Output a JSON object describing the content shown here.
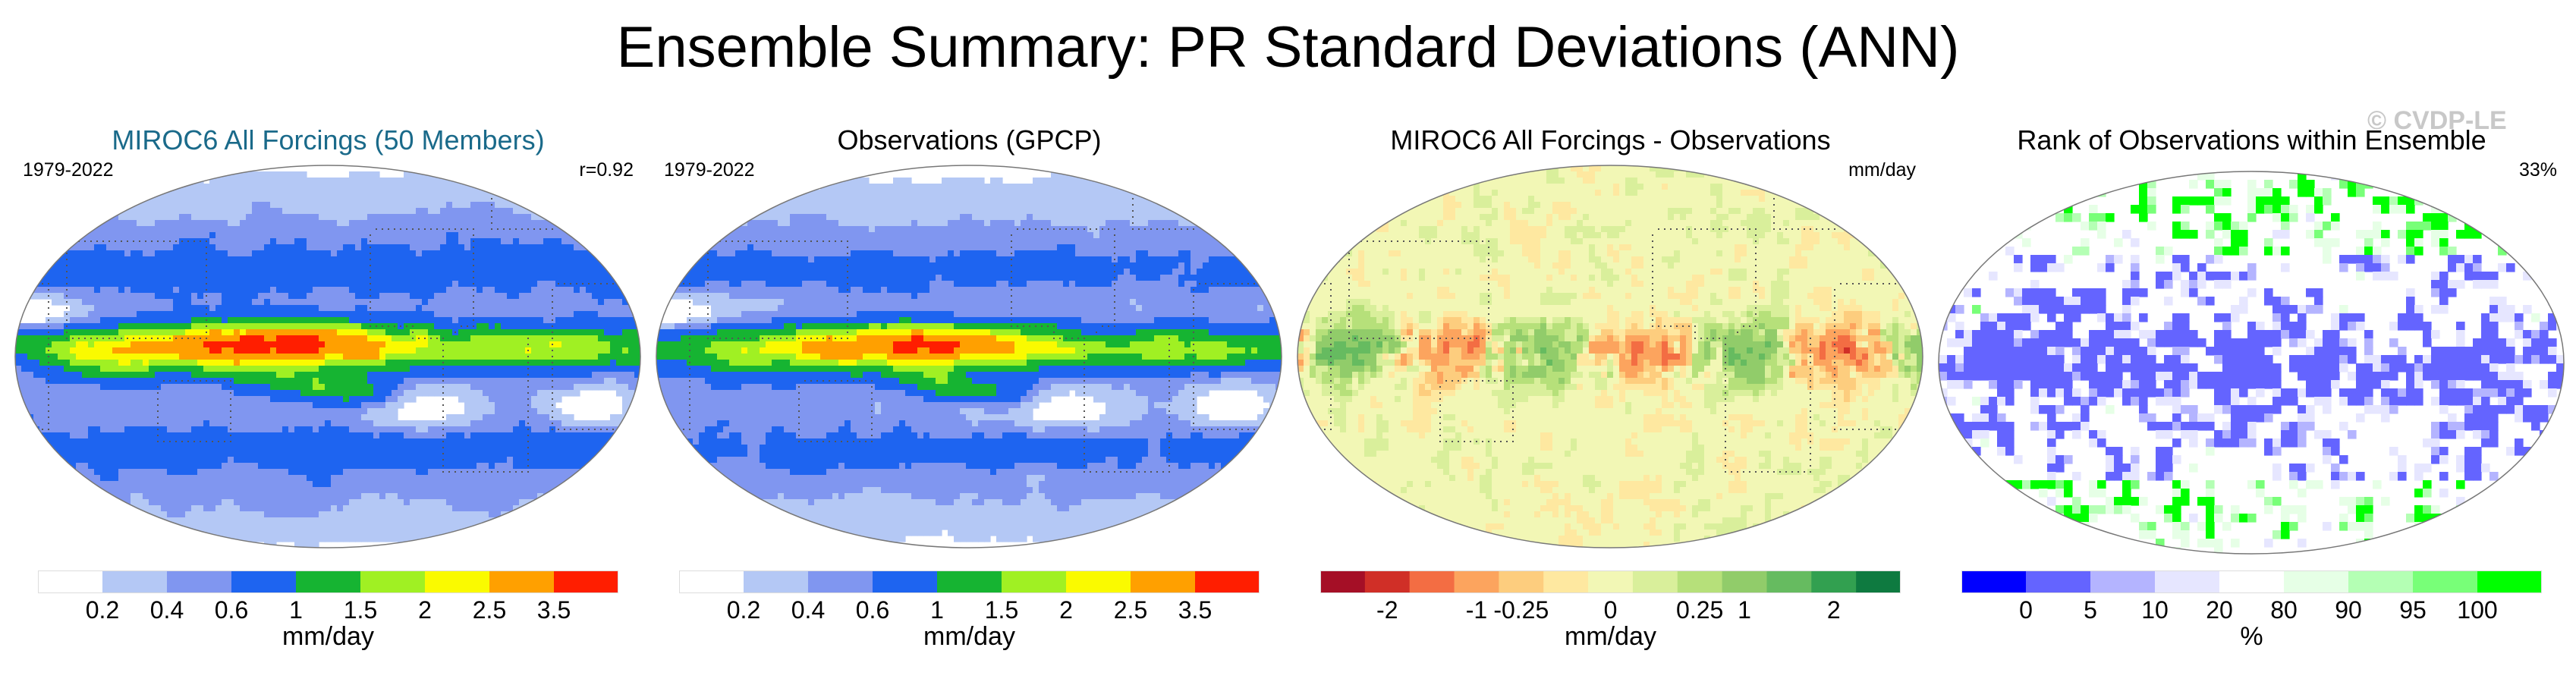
{
  "title": "Ensemble Summary: PR Standard Deviations (ANN)",
  "watermark": "© CVDP-LE",
  "chart_data": [
    {
      "type": "heatmap",
      "title": "MIROC6 All Forcings (50 Members)",
      "title_color": "#1a6a8a",
      "left_label": "1979-2022",
      "right_label": "r=0.92",
      "units": "mm/day",
      "field": "pr_stddev",
      "colorbar": {
        "colors": [
          "#ffffff",
          "#b4c8f5",
          "#8096f0",
          "#1e64f0",
          "#16b432",
          "#a0f023",
          "#fafa00",
          "#ffa000",
          "#ff1e00"
        ],
        "tick_labels": [
          "0.2",
          "0.4",
          "0.6",
          "1",
          "1.5",
          "2",
          "2.5",
          "3.5"
        ]
      }
    },
    {
      "type": "heatmap",
      "title": "Observations (GPCP)",
      "title_color": "#000000",
      "left_label": "1979-2022",
      "right_label": "",
      "units": "mm/day",
      "field": "pr_stddev",
      "colorbar": {
        "colors": [
          "#ffffff",
          "#b4c8f5",
          "#8096f0",
          "#1e64f0",
          "#16b432",
          "#a0f023",
          "#fafa00",
          "#ffa000",
          "#ff1e00"
        ],
        "tick_labels": [
          "0.2",
          "0.4",
          "0.6",
          "1",
          "1.5",
          "2",
          "2.5",
          "3.5"
        ]
      }
    },
    {
      "type": "heatmap",
      "title": "MIROC6 All Forcings - Observations",
      "title_color": "#000000",
      "left_label": "",
      "right_label": "mm/day",
      "units": "mm/day",
      "field": "difference",
      "colorbar": {
        "colors": [
          "#a50f26",
          "#d02f27",
          "#f36d43",
          "#fca45e",
          "#fdcd7e",
          "#fee8a0",
          "#f2f7b5",
          "#d9ef9b",
          "#b6e07a",
          "#91cc6a",
          "#66bb60",
          "#32a050",
          "#0e7a40"
        ],
        "tick_labels": [
          "-2",
          "-1",
          "-0.25",
          "0",
          "0.25",
          "1",
          "2"
        ]
      }
    },
    {
      "type": "heatmap",
      "title": "Rank of Observations within Ensemble",
      "title_color": "#000000",
      "left_label": "",
      "right_label": "33%",
      "units": "%",
      "field": "rank",
      "colorbar": {
        "colors": [
          "#0000ff",
          "#6464ff",
          "#b4b4ff",
          "#e6e6ff",
          "#ffffff",
          "#e6ffe6",
          "#b4ffb4",
          "#78ff78",
          "#00ff00"
        ],
        "tick_labels": [
          "0",
          "5",
          "10",
          "20",
          "80",
          "90",
          "95",
          "100"
        ]
      }
    }
  ]
}
